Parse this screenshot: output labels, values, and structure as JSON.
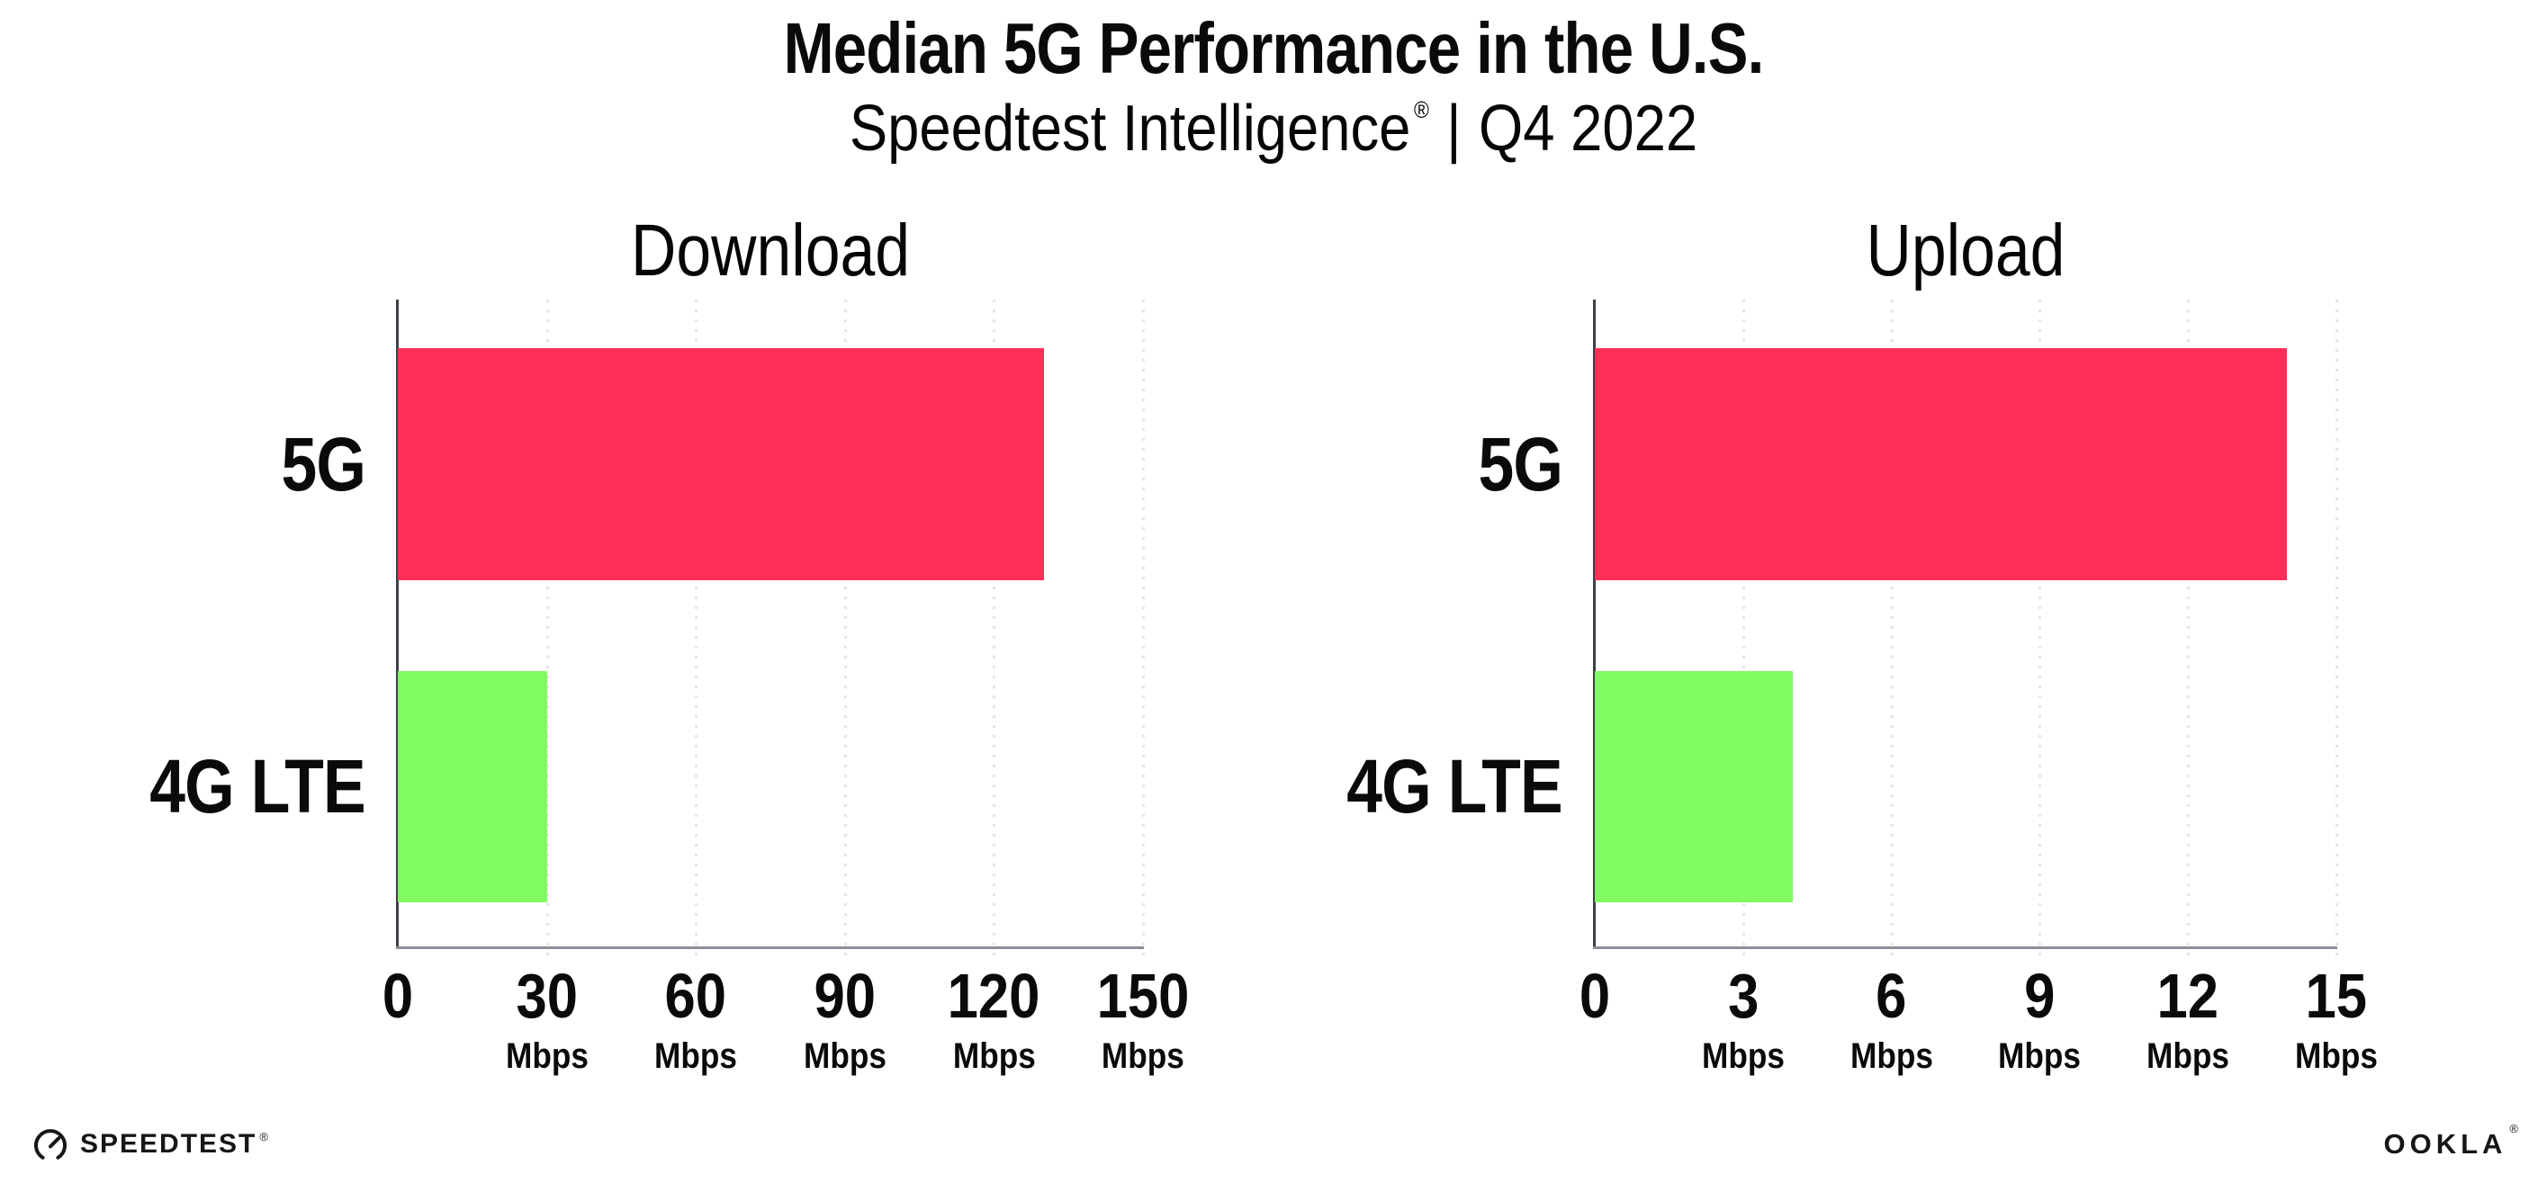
{
  "header": {
    "title": "Median 5G Performance in the U.S.",
    "subtitle_brand": "Speedtest Intelligence",
    "subtitle_registered": "®",
    "subtitle_separator": "|",
    "subtitle_period": "Q4 2022"
  },
  "chart_data": [
    {
      "type": "bar",
      "orientation": "horizontal",
      "title": "Download",
      "categories": [
        "5G",
        "4G LTE"
      ],
      "values": [
        130,
        30
      ],
      "value_unit": "Mbps",
      "xlim": [
        0,
        150
      ],
      "xticks": [
        0,
        30,
        60,
        90,
        120,
        150
      ],
      "tick_unit_label": "Mbps",
      "bar_colors": [
        "#ff2f57",
        "#80fb62"
      ],
      "grid": "vertical-dotted",
      "legend": "none"
    },
    {
      "type": "bar",
      "orientation": "horizontal",
      "title": "Upload",
      "categories": [
        "5G",
        "4G LTE"
      ],
      "values": [
        14,
        4
      ],
      "value_unit": "Mbps",
      "xlim": [
        0,
        15
      ],
      "xticks": [
        0,
        3,
        6,
        9,
        12,
        15
      ],
      "tick_unit_label": "Mbps",
      "bar_colors": [
        "#ff2f57",
        "#80fb62"
      ],
      "grid": "vertical-dotted",
      "legend": "none"
    }
  ],
  "footer": {
    "speedtest_wordmark": "SPEEDTEST",
    "speedtest_mark": "®",
    "ookla_wordmark": "OOKLA",
    "ookla_mark": "®"
  },
  "colors": {
    "bar_5g": "#ff2f57",
    "bar_4g_lte": "#80fb62",
    "gridline": "#e4e4ef",
    "x_axis": "#8f8f99",
    "y_axis": "#3f3f47",
    "text": "#0a0a0a",
    "background": "#ffffff"
  }
}
